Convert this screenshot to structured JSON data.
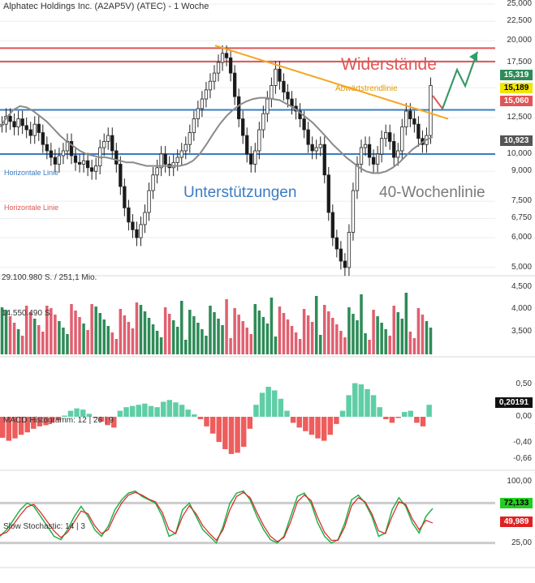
{
  "header": {
    "title": "Alphatec Holdings Inc. (A2AP5V) (ATEC) - 1 Woche"
  },
  "chart_data": [
    {
      "type": "candlestick",
      "title": "Alphatec Holdings Inc. (A2AP5V) (ATEC) - 1 Woche",
      "y_scale": "log",
      "ylim": [
        4.9,
        25.0
      ],
      "yticks": [
        "25,000",
        "22,500",
        "20,000",
        "17,500",
        "15,000",
        "12,500",
        "10,000",
        "9,000",
        "7,500",
        "6,750",
        "6,000",
        "5,000"
      ],
      "closes": [
        12.0,
        12.6,
        12.2,
        11.8,
        12.4,
        11.9,
        11.6,
        11.2,
        12.0,
        11.4,
        10.6,
        10.2,
        9.8,
        9.4,
        9.9,
        10.2,
        10.8,
        9.9,
        9.5,
        9.4,
        9.6,
        9.2,
        9.0,
        9.3,
        10.4,
        10.8,
        11.2,
        10.2,
        9.4,
        8.2,
        7.2,
        6.6,
        6.3,
        6.0,
        6.5,
        7.0,
        8.0,
        8.8,
        9.2,
        10.0,
        9.4,
        9.2,
        9.5,
        9.8,
        10.2,
        10.6,
        11.4,
        12.4,
        13.2,
        14.0,
        14.8,
        15.6,
        16.4,
        17.5,
        18.5,
        18.0,
        16.4,
        14.2,
        12.4,
        11.2,
        10.0,
        9.4,
        10.2,
        11.6,
        12.8,
        14.0,
        15.2,
        16.8,
        15.6,
        14.6,
        14.0,
        13.4,
        13.0,
        12.4,
        11.6,
        10.6,
        10.2,
        10.4,
        10.6,
        8.8,
        7.0,
        6.0,
        5.6,
        5.2,
        5.0,
        6.2,
        8.0,
        9.4,
        10.4,
        10.6,
        9.8,
        9.4,
        10.0,
        11.0,
        11.4,
        10.8,
        9.8,
        10.2,
        11.8,
        13.0,
        12.4,
        12.0,
        11.0,
        10.6,
        11.2,
        15.2
      ],
      "series": [
        {
          "name": "40-Wochenlinie",
          "values": [
            11.8,
            12.5,
            13.1,
            13.4,
            13.3,
            13.0,
            12.6,
            12.2,
            11.7,
            11.2,
            10.8,
            10.5,
            10.2,
            10.0,
            9.9,
            9.8,
            9.8,
            9.7,
            9.6,
            9.5,
            9.5,
            9.4,
            9.3,
            9.3,
            9.3,
            9.3,
            9.3,
            9.3,
            9.4,
            9.6,
            10.0,
            10.6,
            11.3,
            12.0,
            12.6,
            13.1,
            13.5,
            13.8,
            14.0,
            14.1,
            14.1,
            14.0,
            13.9,
            13.6,
            13.3,
            12.9,
            12.5,
            12.1,
            11.6,
            11.1,
            10.6,
            10.2,
            9.8,
            9.5,
            9.2,
            9.0,
            8.9,
            8.9,
            9.0,
            9.2,
            9.5,
            9.9,
            10.3,
            10.6,
            10.9,
            11.1
          ]
        },
        {
          "name": "MACD Histogramm",
          "values": [
            -0.35,
            -0.4,
            -0.36,
            -0.3,
            -0.26,
            -0.2,
            -0.16,
            -0.14,
            -0.1,
            -0.06,
            0.02,
            0.1,
            0.14,
            0.12,
            0.05,
            -0.02,
            -0.08,
            -0.14,
            -0.18,
            0.1,
            0.16,
            0.18,
            0.2,
            0.22,
            0.18,
            0.16,
            0.25,
            0.28,
            0.24,
            0.2,
            0.12,
            0.04,
            -0.04,
            -0.16,
            -0.28,
            -0.42,
            -0.54,
            -0.62,
            -0.6,
            -0.5,
            -0.2,
            0.2,
            0.4,
            0.5,
            0.44,
            0.3,
            0.1,
            -0.1,
            -0.18,
            -0.24,
            -0.3,
            -0.36,
            -0.4,
            -0.3,
            -0.12,
            0.1,
            0.36,
            0.56,
            0.54,
            0.46,
            0.36,
            0.16,
            -0.04,
            -0.1,
            -0.02,
            0.08,
            0.1,
            -0.1,
            -0.16,
            0.2
          ]
        },
        {
          "name": "Slow Stochastic",
          "values": [
            30,
            40,
            55,
            70,
            80,
            75,
            60,
            45,
            30,
            25,
            40,
            60,
            75,
            60,
            40,
            30,
            45,
            70,
            85,
            95,
            98,
            90,
            85,
            80,
            60,
            30,
            35,
            70,
            80,
            60,
            40,
            30,
            20,
            45,
            80,
            95,
            98,
            85,
            60,
            40,
            25,
            20,
            30,
            60,
            90,
            95,
            80,
            50,
            30,
            20,
            25,
            50,
            85,
            92,
            80,
            60,
            30,
            35,
            70,
            88,
            75,
            50,
            35,
            60,
            72
          ]
        },
        {
          "name": "Signal",
          "values": [
            32,
            36,
            48,
            62,
            74,
            78,
            66,
            52,
            38,
            28,
            36,
            52,
            68,
            64,
            46,
            34,
            40,
            62,
            80,
            92,
            96,
            92,
            86,
            82,
            66,
            40,
            34,
            60,
            76,
            64,
            46,
            34,
            24,
            40,
            70,
            90,
            96,
            88,
            66,
            46,
            30,
            22,
            28,
            52,
            82,
            92,
            84,
            58,
            36,
            24,
            24,
            44,
            76,
            88,
            82,
            64,
            38,
            34,
            60,
            82,
            78,
            56,
            40,
            54,
            50
          ]
        }
      ],
      "annotations": [
        "Widerstände",
        "Abwärtstrendlinie",
        "Unterstützungen",
        "40-Wochenlinie",
        "Horizontale Linie",
        "Horizontale Linie"
      ],
      "price_labels": [
        "15,319",
        "15,189",
        "15,060",
        "10,923"
      ],
      "volume": {
        "labels": [
          "29.100.980 S. / 251,1 Mio.",
          "14.550.490 S."
        ],
        "yticks": [
          "4,500",
          "4,000",
          "3,500"
        ]
      },
      "macd": {
        "label": "MACD Histogramm: 12 | 26 | 9",
        "yticks": [
          "0,50",
          "0,00",
          "-0,40",
          "-0,66"
        ],
        "value_label": "0,20191"
      },
      "stochastic": {
        "label": "Slow Stochastic: 14 | 3",
        "yticks": [
          "100,00",
          "25,00"
        ],
        "value_labels": [
          "72,133",
          "49,989"
        ]
      },
      "colors": {
        "up": "#2e8b57",
        "down": "#e06070",
        "resistance": "#e05555",
        "support": "#3a7cc3",
        "trend": "#f5a623",
        "ma": "#8a8a8a",
        "green": "#22b14c",
        "red": "#dd2222",
        "macd_pos": "#5fcea6",
        "macd_neg": "#ee5c5c"
      }
    }
  ]
}
